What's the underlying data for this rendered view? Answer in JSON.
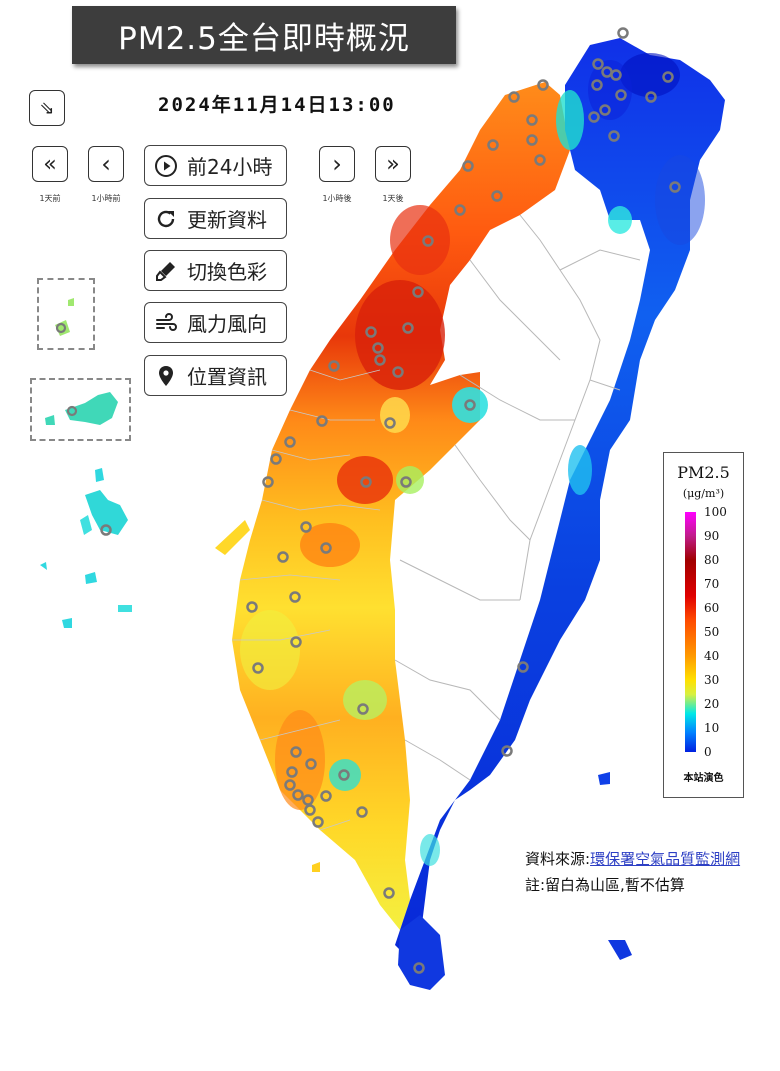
{
  "title": "PM2.5全台即時概況",
  "datetime": "2024年11月14日13:00",
  "nav": {
    "collapse_glyph": "⇘",
    "day_back": {
      "glyph": "«",
      "caption": "1天前"
    },
    "hour_back": {
      "glyph": "‹",
      "caption": "1小時前"
    },
    "hour_fwd": {
      "glyph": "›",
      "caption": "1小時後"
    },
    "day_fwd": {
      "glyph": "»",
      "caption": "1天後"
    }
  },
  "actions": [
    {
      "label": "前24小時",
      "icon": "play-circle-icon"
    },
    {
      "label": "更新資料",
      "icon": "refresh-icon"
    },
    {
      "label": "切換色彩",
      "icon": "brush-icon"
    },
    {
      "label": "風力風向",
      "icon": "wind-icon"
    },
    {
      "label": "位置資訊",
      "icon": "map-pin-icon"
    }
  ],
  "legend": {
    "title": "PM2.5",
    "unit": "(μg/m³)",
    "ticks": [
      "100",
      "90",
      "80",
      "70",
      "60",
      "50",
      "40",
      "30",
      "20",
      "10",
      "0"
    ],
    "footer": "本站演色",
    "colors": [
      "#ff00ff",
      "#a00000",
      "#e00000",
      "#ff4a00",
      "#ff9a00",
      "#ffe000",
      "#00e8e8",
      "#0020e0"
    ]
  },
  "source": {
    "prefix": "資料來源:",
    "link_text": "環保署空氣品質監測網"
  },
  "note": "註:留白為山區,暫不估算",
  "accent_colors": {
    "title_bg": "#3d3d3d",
    "link": "#2d3fc4",
    "station_ring": "#777777"
  }
}
